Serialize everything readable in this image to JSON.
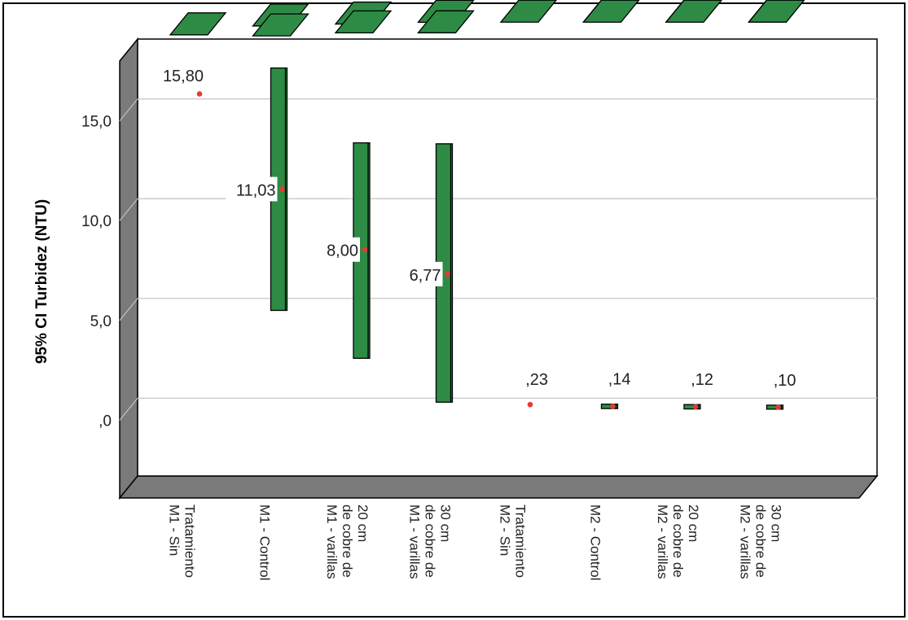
{
  "chart_data": {
    "type": "error-bar",
    "title": "",
    "xlabel": "",
    "ylabel": "95% CI Turbidez (NTU)",
    "y_ticks": [
      ",0",
      "5,0",
      "10,0",
      "15,0"
    ],
    "y_tick_values": [
      0,
      5,
      10,
      15
    ],
    "ylim": [
      -3.9,
      18.0
    ],
    "grid": true,
    "categories": [
      [
        "M1 - Sin",
        "Tratamiento"
      ],
      [
        "M1 - Control"
      ],
      [
        "M1 - varillas",
        "de cobre de",
        "20 cm"
      ],
      [
        "M1 - varillas",
        "de cobre de",
        "30 cm"
      ],
      [
        "M2 - Sin",
        "Tratamiento"
      ],
      [
        "M2 - Control"
      ],
      [
        "M2 - varillas",
        "de cobre de",
        "20 cm"
      ],
      [
        "M2 - varillas",
        "de cobre de",
        "30 cm"
      ]
    ],
    "means": [
      15.8,
      11.03,
      8.0,
      6.77,
      0.23,
      0.14,
      0.12,
      0.1
    ],
    "mean_labels": [
      "15,80",
      "11,03",
      "8,00",
      "6,77",
      ",23",
      ",14",
      ",12",
      ",10"
    ],
    "ci_lower": [
      15.8,
      4.95,
      2.55,
      0.35,
      0.23,
      0.03,
      0.01,
      0.0
    ],
    "ci_upper": [
      15.8,
      17.1,
      13.35,
      13.3,
      0.23,
      0.25,
      0.23,
      0.2
    ],
    "colors": {
      "bar": "#2e8b45",
      "bar_dark": "#1a5a2a",
      "mean_marker": "#e53935",
      "wall": "#7a7a7a",
      "grid": "#c8c8c8",
      "frame": "#000000"
    }
  }
}
